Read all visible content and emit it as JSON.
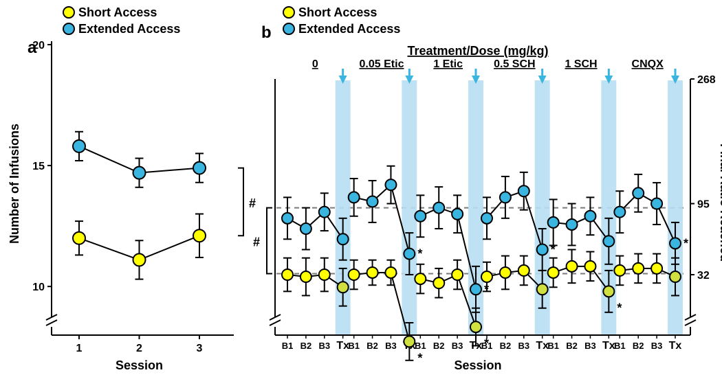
{
  "colors": {
    "short_fill": "#ffff00",
    "short_tx_fill": "#d0e040",
    "ext_fill": "#3ab5e0",
    "stroke": "#000000",
    "bg": "#ffffff",
    "tx_band": "#b7dff2",
    "arrow": "#3ab5e0",
    "dash": "#7a7a7a"
  },
  "legend": {
    "short": "Short Access",
    "extended": "Extended Access"
  },
  "panel_a": {
    "letter": "a",
    "y_label": "Number of Infusions",
    "x_label": "Session",
    "x_ticks": [
      "1",
      "2",
      "3"
    ],
    "y_ticks": [
      10,
      15,
      20
    ],
    "ylim": [
      8.5,
      20
    ],
    "short": {
      "points": [
        {
          "x": 1,
          "y": 12.0,
          "err": 0.7
        },
        {
          "x": 2,
          "y": 11.1,
          "err": 0.8
        },
        {
          "x": 3,
          "y": 12.1,
          "err": 0.9
        }
      ]
    },
    "extended": {
      "points": [
        {
          "x": 1,
          "y": 15.8,
          "err": 0.6
        },
        {
          "x": 2,
          "y": 14.7,
          "err": 0.6
        },
        {
          "x": 3,
          "y": 14.9,
          "err": 0.6
        }
      ]
    },
    "hash_annotation": "#"
  },
  "panel_b": {
    "letter": "b",
    "treatment_title": "Treatment/Dose (mg/kg)",
    "x_label": "Session",
    "right_y_label": "Final Ratio Reached",
    "right_y_ticks": [
      32,
      95,
      268
    ],
    "hash_annotation": "#",
    "x_tick_labels": [
      "B1",
      "B2",
      "B3",
      "Tx"
    ],
    "groups": [
      {
        "label": "0",
        "short": [
          {
            "y": 10.8,
            "err": 0.8
          },
          {
            "y": 10.7,
            "err": 0.9
          },
          {
            "y": 10.8,
            "err": 0.8
          },
          {
            "y": 10.2,
            "err": 0.9,
            "tx": true
          }
        ],
        "extended": [
          {
            "y": 13.5,
            "err": 1.0
          },
          {
            "y": 13.0,
            "err": 1.0
          },
          {
            "y": 13.8,
            "err": 0.9
          },
          {
            "y": 12.5,
            "err": 1.0,
            "tx": true
          }
        ]
      },
      {
        "label": "0.05 Etic",
        "short": [
          {
            "y": 10.8,
            "err": 0.7
          },
          {
            "y": 10.9,
            "err": 0.6
          },
          {
            "y": 10.9,
            "err": 0.6
          },
          {
            "y": 7.6,
            "err": 0.9,
            "tx": true,
            "sig": true
          }
        ],
        "extended": [
          {
            "y": 14.5,
            "err": 0.9
          },
          {
            "y": 14.3,
            "err": 1.0
          },
          {
            "y": 15.1,
            "err": 0.9
          },
          {
            "y": 11.8,
            "err": 1.0,
            "tx": true,
            "sig": true
          }
        ]
      },
      {
        "label": "1 Etic",
        "short": [
          {
            "y": 10.6,
            "err": 0.7
          },
          {
            "y": 10.4,
            "err": 0.7
          },
          {
            "y": 10.8,
            "err": 0.7
          },
          {
            "y": 8.3,
            "err": 0.9,
            "tx": true,
            "sig": true
          }
        ],
        "extended": [
          {
            "y": 13.6,
            "err": 1.0
          },
          {
            "y": 14.0,
            "err": 1.0
          },
          {
            "y": 13.7,
            "err": 0.9
          },
          {
            "y": 10.1,
            "err": 1.1,
            "tx": true,
            "sig": true
          }
        ]
      },
      {
        "label": "0.5 SCH",
        "short": [
          {
            "y": 10.7,
            "err": 0.7
          },
          {
            "y": 10.9,
            "err": 0.8
          },
          {
            "y": 11.0,
            "err": 0.7
          },
          {
            "y": 10.1,
            "err": 0.9,
            "tx": true
          }
        ],
        "extended": [
          {
            "y": 13.5,
            "err": 1.0
          },
          {
            "y": 14.5,
            "err": 1.0
          },
          {
            "y": 14.8,
            "err": 0.9
          },
          {
            "y": 12.0,
            "err": 1.0,
            "tx": true,
            "sig": true
          }
        ]
      },
      {
        "label": "1 SCH",
        "short": [
          {
            "y": 10.9,
            "err": 0.7
          },
          {
            "y": 11.2,
            "err": 0.8
          },
          {
            "y": 11.2,
            "err": 0.7
          },
          {
            "y": 10.0,
            "err": 1.0,
            "tx": true,
            "sig": true
          }
        ],
        "extended": [
          {
            "y": 13.3,
            "err": 1.1
          },
          {
            "y": 13.2,
            "err": 1.0
          },
          {
            "y": 13.6,
            "err": 0.9
          },
          {
            "y": 12.4,
            "err": 1.1,
            "tx": true
          }
        ]
      },
      {
        "label": "CNQX",
        "short": [
          {
            "y": 11.0,
            "err": 0.7
          },
          {
            "y": 11.1,
            "err": 0.7
          },
          {
            "y": 11.1,
            "err": 0.7
          },
          {
            "y": 10.7,
            "err": 0.9,
            "tx": true
          }
        ],
        "extended": [
          {
            "y": 13.8,
            "err": 1.0
          },
          {
            "y": 14.7,
            "err": 0.9
          },
          {
            "y": 14.2,
            "err": 1.0
          },
          {
            "y": 12.3,
            "err": 1.0,
            "tx": true,
            "sig": true
          }
        ]
      }
    ]
  },
  "style": {
    "marker_r": 9,
    "line_w": 2,
    "err_w": 2,
    "cap_w": 6,
    "tick_font": 16,
    "label_font": 18,
    "panel_font": 24
  }
}
